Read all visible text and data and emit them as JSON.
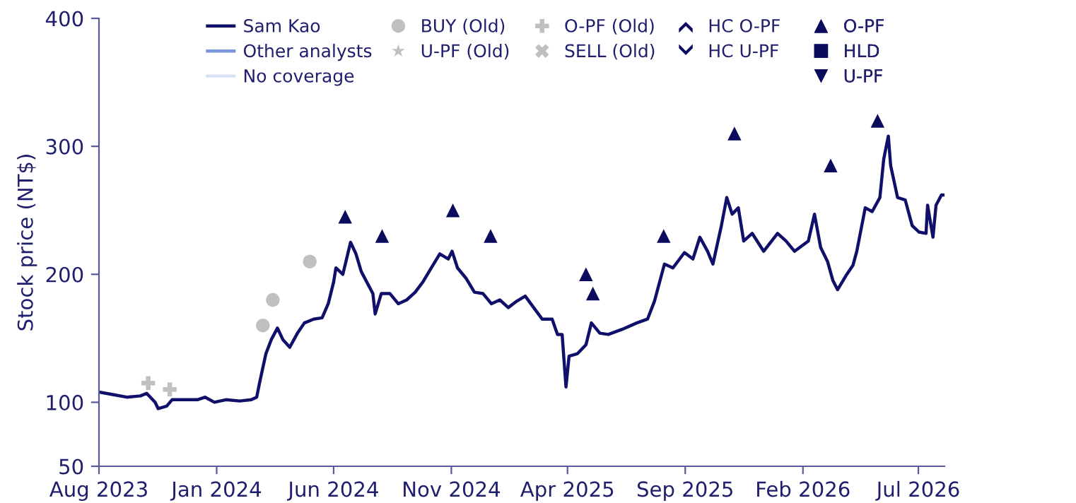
{
  "chart_data": {
    "type": "line",
    "ylabel": "Stock price (NT$)",
    "xlim": [
      "2023-08-01",
      "2026-08-04"
    ],
    "xticks": [
      {
        "value": "2023-08-01",
        "label": "Aug 2023"
      },
      {
        "value": "2024-01-01",
        "label": "Jan 2024"
      },
      {
        "value": "2024-06-01",
        "label": "Jun 2024"
      },
      {
        "value": "2024-11-01",
        "label": "Nov 2024"
      },
      {
        "value": "2025-04-01",
        "label": "Apr 2025"
      },
      {
        "value": "2025-09-01",
        "label": "Sep 2025"
      },
      {
        "value": "2026-02-01",
        "label": "Feb 2026"
      },
      {
        "value": "2026-07-01",
        "label": "Jul 2026"
      }
    ],
    "ylim": [
      50,
      400
    ],
    "yticks": [
      50,
      100,
      200,
      300,
      400
    ],
    "grid": false,
    "legend": "top",
    "series": [
      {
        "name": "Sam Kao",
        "type": "line",
        "color": "#10106a",
        "x": [
          "2023-08-01",
          "2023-08-19",
          "2023-09-06",
          "2023-09-24",
          "2023-10-02",
          "2023-10-13",
          "2023-10-17",
          "2023-10-28",
          "2023-11-04",
          "2023-11-19",
          "2023-12-07",
          "2023-12-17",
          "2023-12-29",
          "2024-01-13",
          "2024-01-31",
          "2024-02-15",
          "2024-02-22",
          "2024-02-26",
          "2024-03-05",
          "2024-03-12",
          "2024-03-20",
          "2024-03-27",
          "2024-04-05",
          "2024-04-15",
          "2024-04-24",
          "2024-05-06",
          "2024-05-17",
          "2024-05-25",
          "2024-06-01",
          "2024-06-04",
          "2024-06-13",
          "2024-06-23",
          "2024-06-30",
          "2024-07-07",
          "2024-07-22",
          "2024-07-25",
          "2024-08-02",
          "2024-08-13",
          "2024-08-24",
          "2024-09-04",
          "2024-09-15",
          "2024-09-25",
          "2024-10-06",
          "2024-10-17",
          "2024-10-28",
          "2024-11-02",
          "2024-11-09",
          "2024-11-20",
          "2024-12-01",
          "2024-12-12",
          "2024-12-23",
          "2025-01-03",
          "2025-01-14",
          "2025-01-25",
          "2025-02-05",
          "2025-02-16",
          "2025-02-27",
          "2025-03-12",
          "2025-03-19",
          "2025-03-25",
          "2025-03-30",
          "2025-04-03",
          "2025-04-14",
          "2025-04-25",
          "2025-05-02",
          "2025-05-13",
          "2025-05-24",
          "2025-06-11",
          "2025-06-30",
          "2025-07-14",
          "2025-07-23",
          "2025-08-05",
          "2025-08-16",
          "2025-08-31",
          "2025-09-11",
          "2025-09-20",
          "2025-09-30",
          "2025-10-07",
          "2025-10-18",
          "2025-10-25",
          "2025-11-01",
          "2025-11-09",
          "2025-11-16",
          "2025-11-27",
          "2025-12-12",
          "2025-12-30",
          "2026-01-10",
          "2026-01-21",
          "2026-02-08",
          "2026-02-16",
          "2026-02-24",
          "2026-03-05",
          "2026-03-12",
          "2026-03-18",
          "2026-03-29",
          "2026-04-07",
          "2026-04-12",
          "2026-04-23",
          "2026-05-02",
          "2026-05-12",
          "2026-05-17",
          "2026-05-23",
          "2026-05-26",
          "2026-06-04",
          "2026-06-14",
          "2026-06-23",
          "2026-07-02",
          "2026-07-11",
          "2026-07-13",
          "2026-07-20",
          "2026-07-24",
          "2026-07-31",
          "2026-08-03"
        ],
        "values": [
          108,
          106,
          104,
          105,
          107,
          100,
          95,
          97,
          102,
          102,
          102,
          104,
          100,
          102,
          101,
          102,
          104,
          116,
          138,
          149,
          158,
          149,
          143,
          154,
          162,
          165,
          166,
          177,
          194,
          205,
          200,
          225,
          216,
          202,
          185,
          169,
          185,
          185,
          177,
          180,
          186,
          194,
          205,
          216,
          212,
          218,
          205,
          197,
          186,
          185,
          177,
          180,
          174,
          179,
          183,
          174,
          165,
          165,
          153,
          153,
          112,
          136,
          138,
          145,
          162,
          154,
          153,
          157,
          162,
          165,
          179,
          208,
          205,
          217,
          212,
          229,
          218,
          208,
          238,
          260,
          247,
          252,
          226,
          232,
          218,
          232,
          226,
          218,
          226,
          247,
          221,
          210,
          195,
          188,
          199,
          207,
          218,
          252,
          249,
          260,
          290,
          308,
          285,
          260,
          258,
          238,
          233,
          232,
          254,
          229,
          254,
          262,
          262
        ]
      },
      {
        "name": "Other analysts",
        "type": "line",
        "color": "#7b96d8"
      },
      {
        "name": "No coverage",
        "type": "line",
        "color": "#d7e0f4"
      },
      {
        "name": "BUY (Old)",
        "type": "scatter",
        "color": "#c0c0c0",
        "marker": "circle",
        "x": [
          "2024-03-01",
          "2024-03-14",
          "2024-05-01"
        ],
        "values": [
          160,
          180,
          210
        ]
      },
      {
        "name": "U-PF (Old)",
        "type": "scatter",
        "color": "#c0c0c0",
        "marker": "star"
      },
      {
        "name": "O-PF (Old)",
        "type": "scatter",
        "color": "#c0c0c0",
        "marker": "plus",
        "x": [
          "2023-10-04",
          "2023-11-01"
        ],
        "values": [
          115,
          110
        ]
      },
      {
        "name": "SELL (Old)",
        "type": "scatter",
        "color": "#c0c0c0",
        "marker": "x"
      },
      {
        "name": "HC O-PF",
        "type": "scatter",
        "color": "#0b0b5e",
        "marker": "chevron-up"
      },
      {
        "name": "HC U-PF",
        "type": "scatter",
        "color": "#0b0b5e",
        "marker": "chevron-down"
      },
      {
        "name": "O-PF",
        "type": "scatter",
        "color": "#0b0b5e",
        "marker": "triangle",
        "x": [
          "2024-06-16",
          "2024-08-03",
          "2024-11-03",
          "2024-12-22",
          "2025-04-25",
          "2025-05-04",
          "2025-08-04",
          "2025-11-04",
          "2026-03-09",
          "2026-05-09"
        ],
        "values": [
          245,
          230,
          250,
          230,
          200,
          185,
          230,
          310,
          285,
          320
        ]
      },
      {
        "name": "HLD",
        "type": "scatter",
        "color": "#0b0b5e",
        "marker": "square"
      },
      {
        "name": "U-PF",
        "type": "scatter",
        "color": "#0b0b5e",
        "marker": "triangle-down"
      }
    ]
  }
}
